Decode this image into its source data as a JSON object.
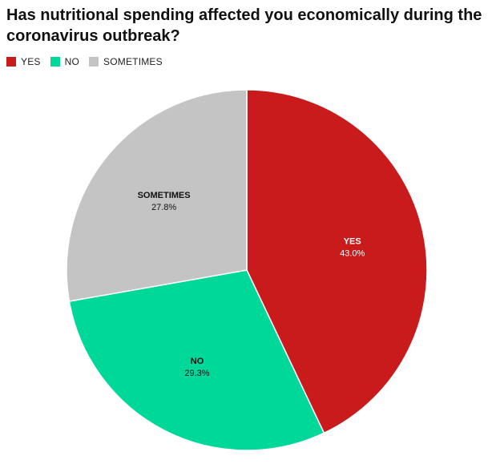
{
  "chart_data": {
    "type": "pie",
    "title": "Has nutritional spending affected you economically during the coronavirus outbreak?",
    "categories": [
      "YES",
      "NO",
      "SOMETIMES"
    ],
    "values": [
      43.0,
      29.3,
      27.8
    ],
    "value_labels": [
      "43.0%",
      "29.3%",
      "27.8%"
    ],
    "colors": [
      "#c91a1c",
      "#00d89a",
      "#c4c4c4"
    ],
    "start": "12 o'clock, clockwise",
    "legend": {
      "position": "top-left",
      "items": [
        {
          "label": "YES",
          "color": "#c91a1c"
        },
        {
          "label": "NO",
          "color": "#00d89a"
        },
        {
          "label": "SOMETIMES",
          "color": "#c4c4c4"
        }
      ]
    }
  }
}
